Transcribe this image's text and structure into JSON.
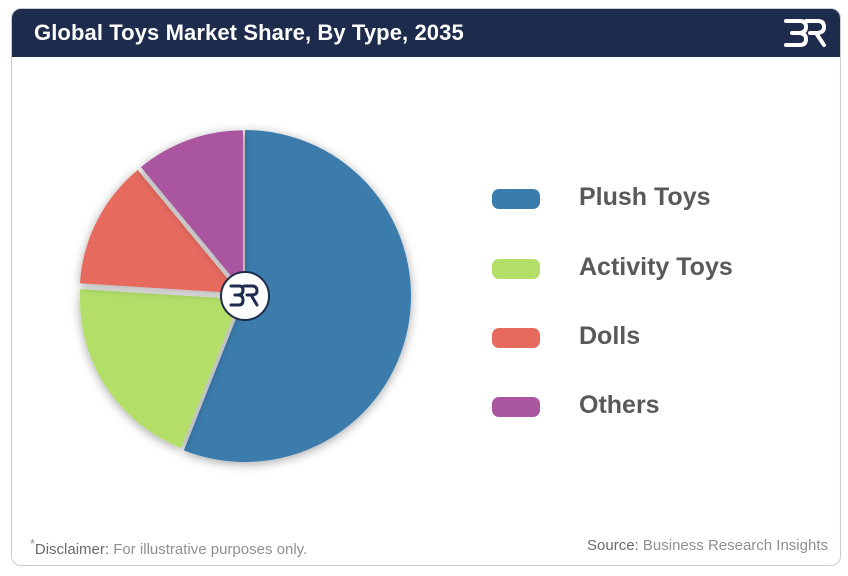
{
  "header": {
    "title": "Global Toys Market Share, By Type, 2035"
  },
  "colors": {
    "header_bg": "#1d2b4d"
  },
  "chart_data": {
    "type": "pie",
    "title": "Global Toys Market Share, By Type, 2035",
    "categories": [
      "Plush Toys",
      "Activity Toys",
      "Dolls",
      "Others"
    ],
    "values": [
      56,
      20,
      13,
      11
    ],
    "colors": [
      "#3a7cad",
      "#b3df69",
      "#e76a5e",
      "#a9559f"
    ],
    "exploded": [
      false,
      true,
      true,
      true
    ],
    "legend_position": "right"
  },
  "footer": {
    "disclaimer_label": "Disclaimer:",
    "disclaimer_text": "For illustrative purposes only.",
    "source_label": "Source:",
    "source_text": "Business Research Insights"
  }
}
